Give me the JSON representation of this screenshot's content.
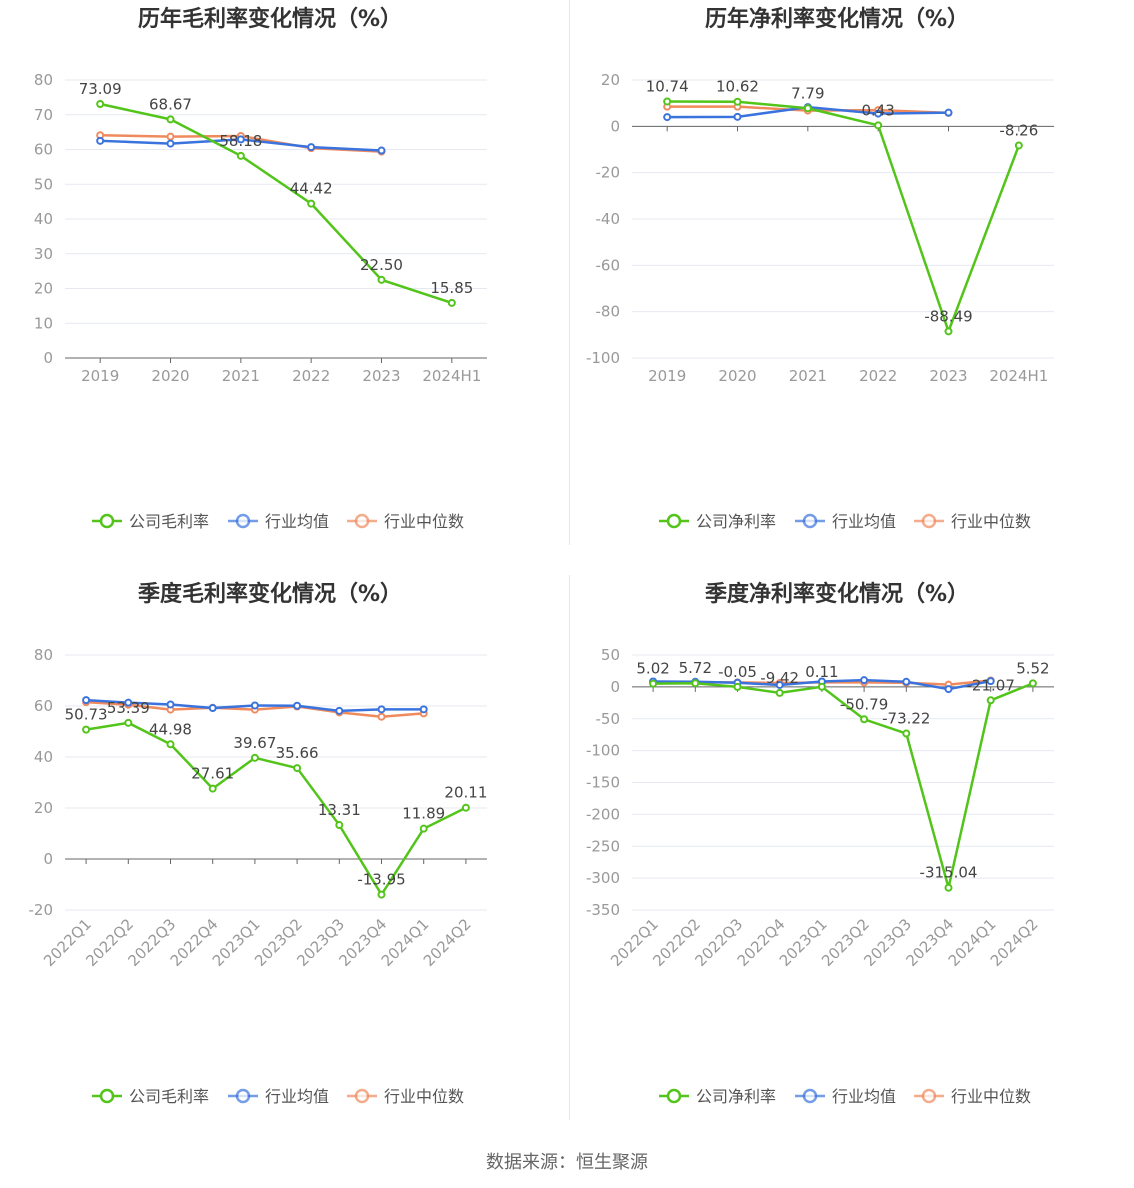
{
  "colors": {
    "company": "#52c41a",
    "avg": "#3a73dd",
    "median": "#f08a5d",
    "grid": "#e6e9f2",
    "axis": "#666666"
  },
  "source": "数据来源：恒生聚源",
  "charts": [
    {
      "type": "line",
      "title": "历年毛利率变化情况（%）",
      "categories": [
        "2019",
        "2020",
        "2021",
        "2022",
        "2023",
        "2024H1"
      ],
      "ylim": [
        0,
        80
      ],
      "yticks": [
        0,
        10,
        20,
        30,
        40,
        50,
        60,
        70,
        80
      ],
      "rotate_x": false,
      "series": [
        {
          "name": "公司毛利率",
          "key": "company",
          "values": [
            73.09,
            68.67,
            58.18,
            44.42,
            22.5,
            15.85
          ],
          "labels": [
            "73.09",
            "68.67",
            "58.18",
            "44.42",
            "22.50",
            "15.85"
          ]
        },
        {
          "name": "行业均值",
          "key": "avg",
          "values": [
            62.5,
            61.7,
            62.9,
            60.7,
            59.7,
            null
          ]
        },
        {
          "name": "行业中位数",
          "key": "median",
          "values": [
            64.1,
            63.7,
            63.9,
            60.4,
            59.4,
            null
          ]
        }
      ]
    },
    {
      "type": "line",
      "title": "历年净利率变化情况（%）",
      "categories": [
        "2019",
        "2020",
        "2021",
        "2022",
        "2023",
        "2024H1"
      ],
      "ylim": [
        -100,
        20
      ],
      "yticks": [
        -100,
        -80,
        -60,
        -40,
        -20,
        0,
        20
      ],
      "rotate_x": false,
      "series": [
        {
          "name": "公司净利率",
          "key": "company",
          "values": [
            10.74,
            10.62,
            7.79,
            0.43,
            -88.49,
            -8.26
          ],
          "labels": [
            "10.74",
            "10.62",
            "7.79",
            "0.43",
            "-88.49",
            "-8.26"
          ]
        },
        {
          "name": "行业均值",
          "key": "avg",
          "values": [
            4.0,
            4.1,
            8.3,
            5.5,
            5.9,
            null
          ]
        },
        {
          "name": "行业中位数",
          "key": "median",
          "values": [
            8.5,
            8.5,
            6.8,
            7.0,
            5.8,
            null
          ]
        }
      ]
    },
    {
      "type": "line",
      "title": "季度毛利率变化情况（%）",
      "categories": [
        "2022Q1",
        "2022Q2",
        "2022Q3",
        "2022Q4",
        "2023Q1",
        "2023Q2",
        "2023Q3",
        "2023Q4",
        "2024Q1",
        "2024Q2"
      ],
      "ylim": [
        -20,
        80
      ],
      "yticks": [
        -20,
        0,
        20,
        40,
        60,
        80
      ],
      "rotate_x": true,
      "series": [
        {
          "name": "公司毛利率",
          "key": "company",
          "values": [
            50.73,
            53.39,
            44.98,
            27.61,
            39.67,
            35.66,
            13.31,
            -13.95,
            11.89,
            20.11
          ],
          "labels": [
            "50.73",
            "53.39",
            "44.98",
            "27.61",
            "39.67",
            "35.66",
            "13.31",
            "-13.95",
            "11.89",
            "20.11"
          ]
        },
        {
          "name": "行业均值",
          "key": "avg",
          "values": [
            62.3,
            61.3,
            60.6,
            59.2,
            60.2,
            60.1,
            58.1,
            58.7,
            58.7,
            null
          ]
        },
        {
          "name": "行业中位数",
          "key": "median",
          "values": [
            61.5,
            60.5,
            58.6,
            59.3,
            58.6,
            59.8,
            57.5,
            55.8,
            57.1,
            null
          ]
        }
      ]
    },
    {
      "type": "line",
      "title": "季度净利率变化情况（%）",
      "categories": [
        "2022Q1",
        "2022Q2",
        "2022Q3",
        "2022Q4",
        "2023Q1",
        "2023Q2",
        "2023Q3",
        "2023Q4",
        "2024Q1",
        "2024Q2"
      ],
      "ylim": [
        -350,
        50
      ],
      "yticks": [
        -350,
        -300,
        -250,
        -200,
        -150,
        -100,
        -50,
        0,
        50
      ],
      "rotate_x": true,
      "series": [
        {
          "name": "公司净利率",
          "key": "company",
          "values": [
            5.02,
            5.72,
            -0.05,
            -9.42,
            0.11,
            -50.79,
            -73.22,
            -315.04,
            -21.07,
            5.52
          ],
          "labels": [
            "5.02",
            "5.72",
            "-0.05",
            "-9.42",
            "0.11",
            "-50.79",
            "-73.22",
            "-315.04",
            "-21.07",
            "5.52"
          ]
        },
        {
          "name": "行业均值",
          "key": "avg",
          "values": [
            8.5,
            8.0,
            6.5,
            3.0,
            8.5,
            10.5,
            8.0,
            -3.5,
            9.0,
            null
          ]
        },
        {
          "name": "行业中位数",
          "key": "median",
          "values": [
            7.0,
            7.0,
            7.0,
            6.0,
            7.0,
            7.0,
            6.5,
            3.5,
            10.0,
            null
          ]
        }
      ]
    }
  ]
}
